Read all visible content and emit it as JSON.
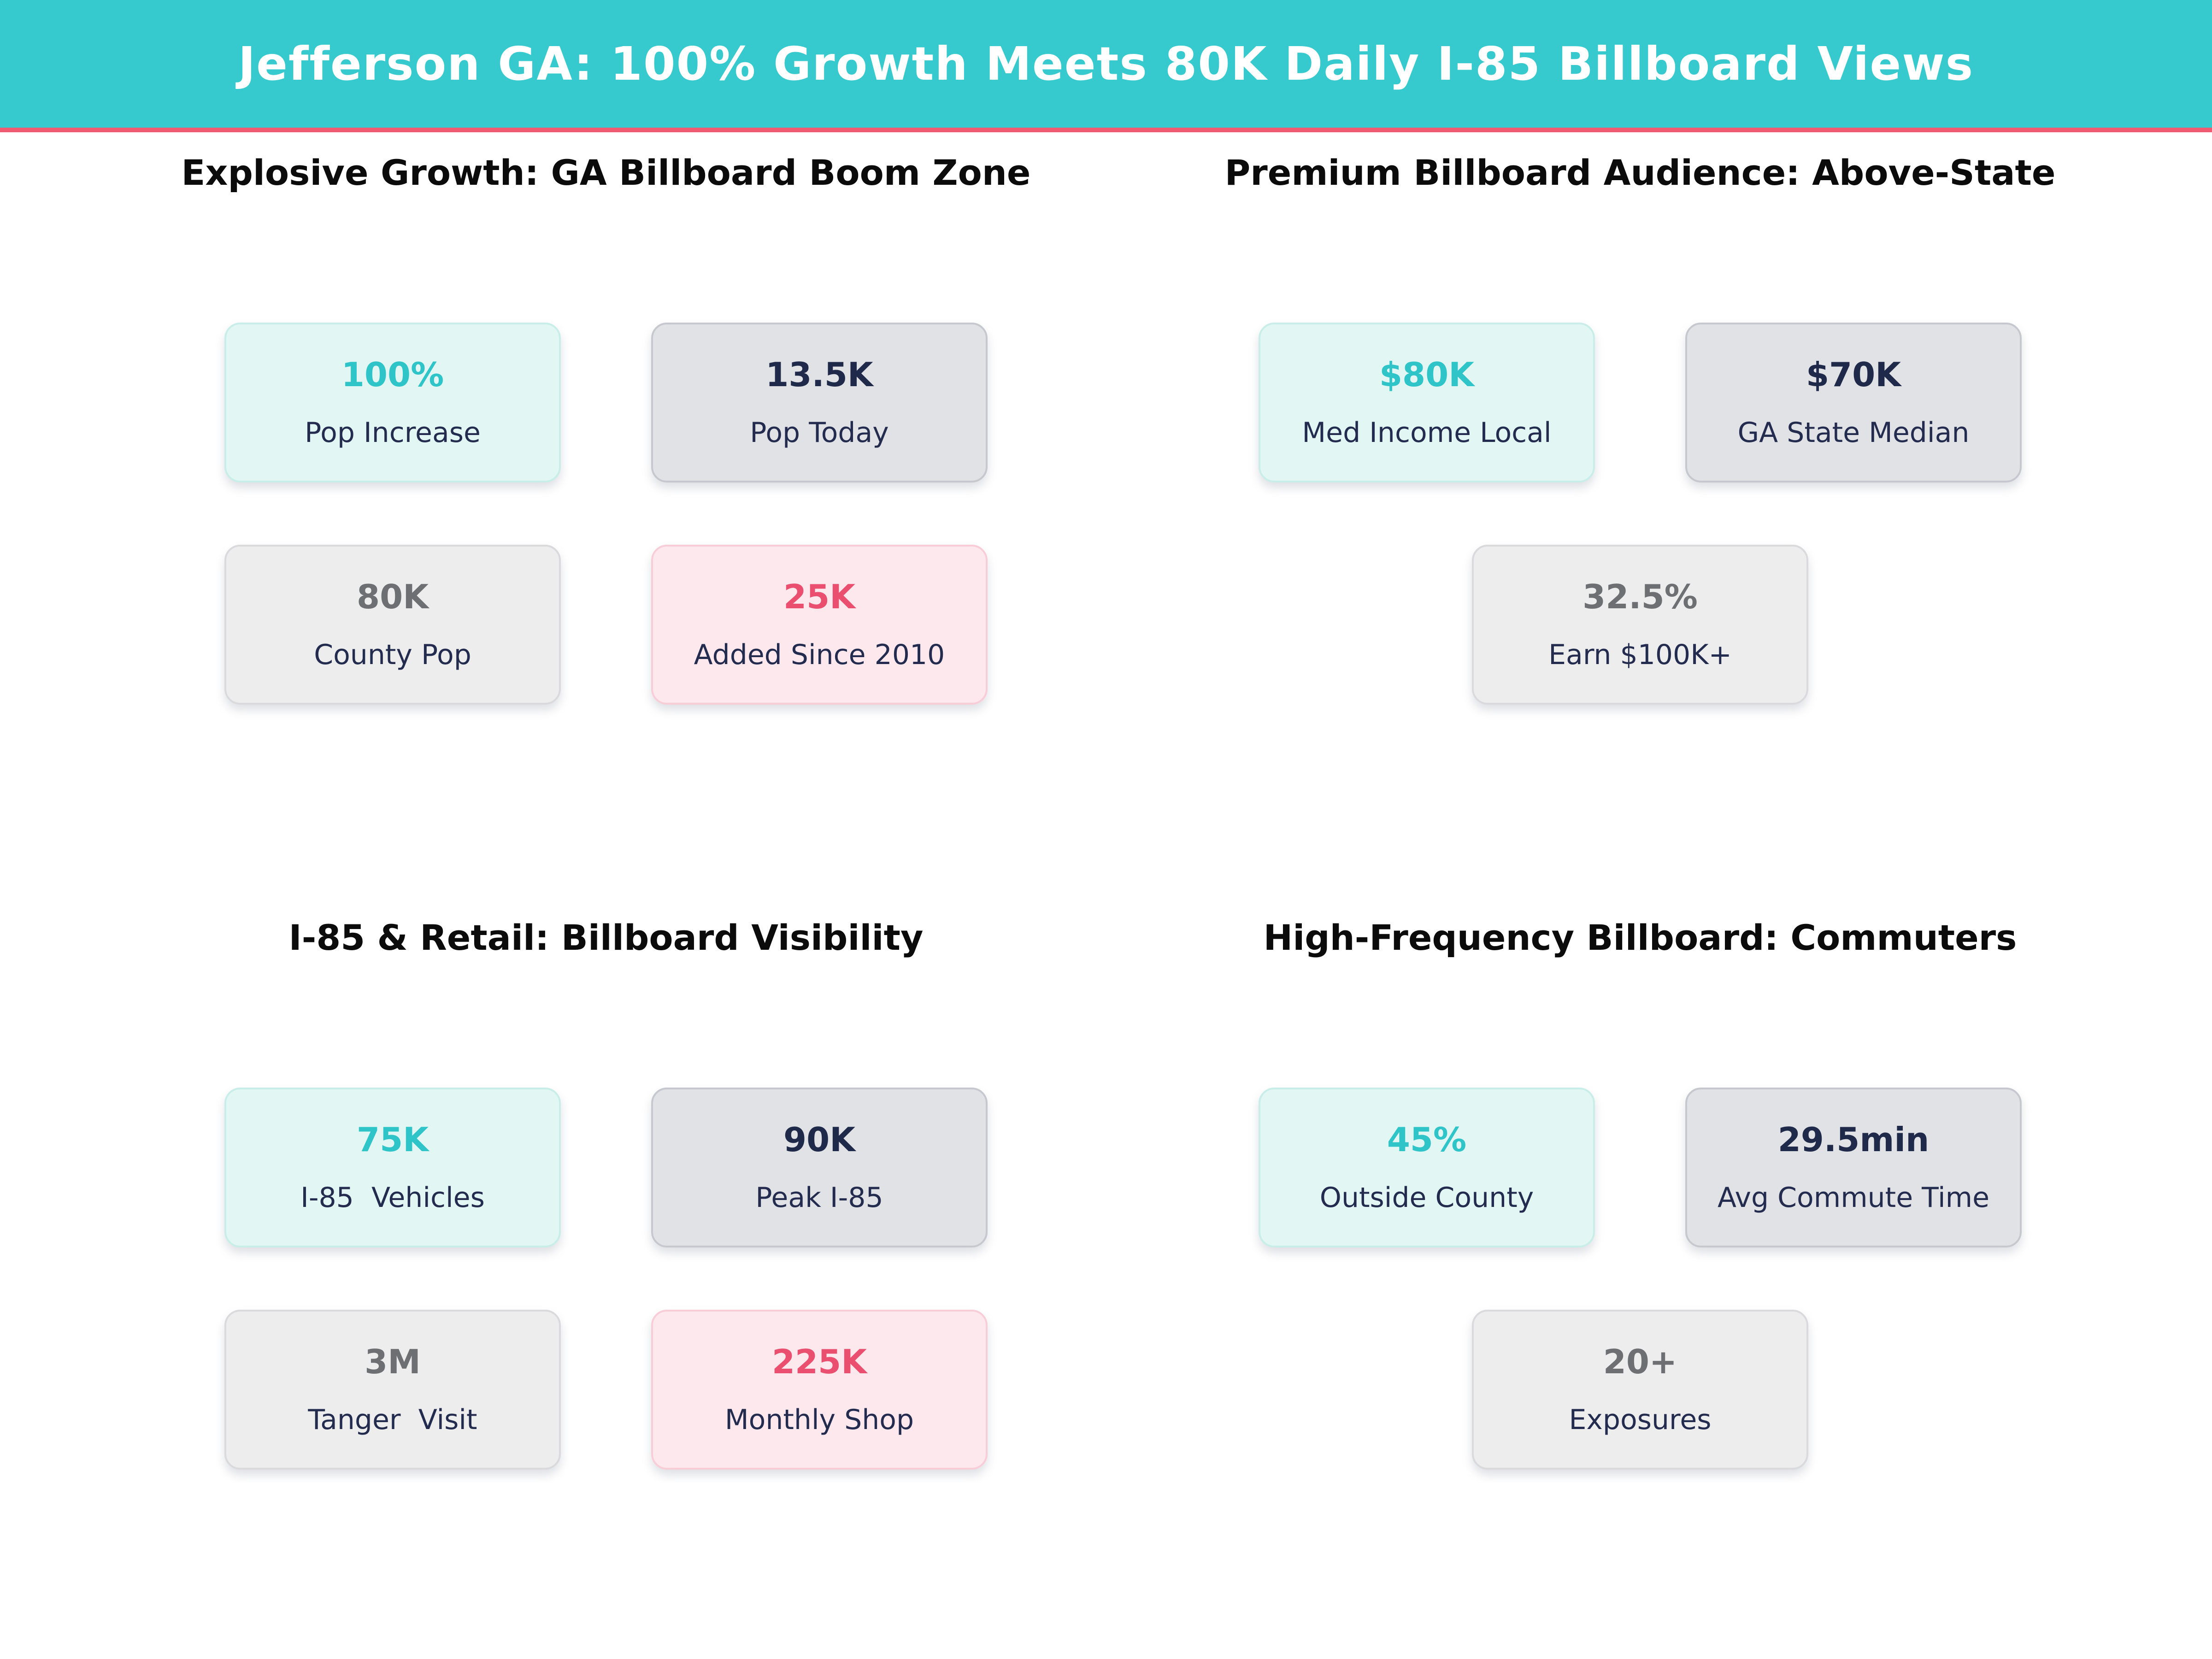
{
  "header": {
    "title": "Jefferson GA: 100% Growth Meets 80K Daily I-85 Billboard Views"
  },
  "palette": {
    "header_bg": "#36c9cd",
    "header_accent_strip": "#f05b72",
    "teal_card_bg": "#e2f6f4",
    "teal_value": "#2fc4c8",
    "dark_card_bg": "#e1e2e6",
    "navy_value": "#1f2a4a",
    "light_card_bg": "#ededee",
    "gray_value": "#6e6f72",
    "pink_card_bg": "#fde9ed",
    "pink_value": "#ea4f6f",
    "label_color": "#232c4e",
    "quadrant_title_color": "#0b0b0b"
  },
  "quadrants": [
    {
      "title": "Explosive Growth: GA Billboard Boom Zone",
      "cards": [
        {
          "value": "100%",
          "label": "Pop Increase"
        },
        {
          "value": "13.5K",
          "label": "Pop Today"
        },
        {
          "value": "80K",
          "label": "County Pop"
        },
        {
          "value": "25K",
          "label": "Added Since 2010"
        }
      ]
    },
    {
      "title": "Premium Billboard Audience: Above-State",
      "cards": [
        {
          "value": "$80K",
          "label": "Med Income Local"
        },
        {
          "value": "$70K",
          "label": "GA State Median"
        },
        {
          "value": "32.5%",
          "label": "Earn $100K+"
        }
      ]
    },
    {
      "title": "I-85 & Retail: Billboard Visibility",
      "cards": [
        {
          "value": "75K",
          "label": "I-85  Vehicles"
        },
        {
          "value": "90K",
          "label": "Peak I-85"
        },
        {
          "value": "3M",
          "label": "Tanger  Visit"
        },
        {
          "value": "225K",
          "label": "Monthly Shop"
        }
      ]
    },
    {
      "title": "High-Frequency Billboard: Commuters",
      "cards": [
        {
          "value": "45%",
          "label": "Outside County"
        },
        {
          "value": "29.5min",
          "label": "Avg Commute Time"
        },
        {
          "value": "20+",
          "label": "Exposures"
        }
      ]
    }
  ],
  "chart_data": {
    "type": "table",
    "title": "Jefferson GA: 100% Growth Meets 80K Daily I-85 Billboard Views",
    "groups": [
      {
        "group": "Explosive Growth: GA Billboard Boom Zone",
        "stats": [
          {
            "label": "Pop Increase",
            "value": "100%"
          },
          {
            "label": "Pop Today",
            "value": "13.5K"
          },
          {
            "label": "County Pop",
            "value": "80K"
          },
          {
            "label": "Added Since 2010",
            "value": "25K"
          }
        ]
      },
      {
        "group": "Premium Billboard Audience: Above-State",
        "stats": [
          {
            "label": "Med Income Local",
            "value": "$80K"
          },
          {
            "label": "GA State Median",
            "value": "$70K"
          },
          {
            "label": "Earn $100K+",
            "value": "32.5%"
          }
        ]
      },
      {
        "group": "I-85 & Retail: Billboard Visibility",
        "stats": [
          {
            "label": "I-85 Vehicles",
            "value": "75K"
          },
          {
            "label": "Peak I-85",
            "value": "90K"
          },
          {
            "label": "Tanger Visit",
            "value": "3M"
          },
          {
            "label": "Monthly Shop",
            "value": "225K"
          }
        ]
      },
      {
        "group": "High-Frequency Billboard: Commuters",
        "stats": [
          {
            "label": "Outside County",
            "value": "45%"
          },
          {
            "label": "Avg Commute Time",
            "value": "29.5min"
          },
          {
            "label": "Exposures",
            "value": "20+"
          }
        ]
      }
    ]
  }
}
